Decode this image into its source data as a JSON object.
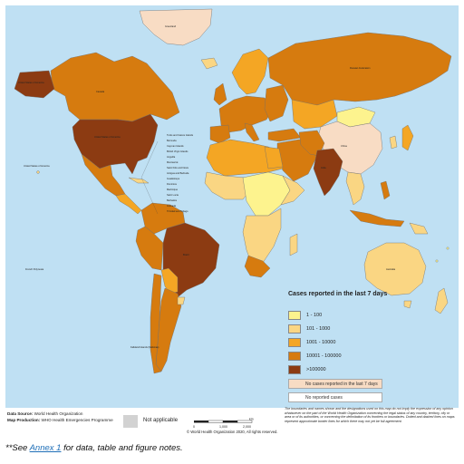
{
  "colors": {
    "ocean": "#bfe0f3",
    "border": "#6f6f6f",
    "na": "#d2d2d2",
    "link": "#1f6fb8"
  },
  "legend": {
    "title": "Cases reported in the last 7 days",
    "items": [
      {
        "label": "1 - 100",
        "color": "#fdf38e"
      },
      {
        "label": "101 - 1000",
        "color": "#fad683"
      },
      {
        "label": "1001 - 10000",
        "color": "#f4a624"
      },
      {
        "label": "10001 - 100000",
        "color": "#d67b0f"
      },
      {
        "label": ">100000",
        "color": "#8c3b12"
      }
    ],
    "no_cases_recent": {
      "label": "No cases reported in the last 7 days",
      "color": "#f8dcc4"
    },
    "no_cases": {
      "label": "No reported cases",
      "color": "#ffffff"
    }
  },
  "not_applicable": {
    "label": "Not applicable",
    "color": "#d2d2d2"
  },
  "source": {
    "data_source_label": "Data Source:",
    "data_source_value": "World Health Organization",
    "map_production_label": "Map Production:",
    "map_production_value": "WHO Health Emergencies Programme"
  },
  "scale": {
    "ticks": [
      "0",
      "1,000",
      "2,000"
    ],
    "unit": "km"
  },
  "copyright": "© World Health Organization 2020, All rights reserved.",
  "disclaimer": "The boundaries and names shown and the designations used on this map do not imply the expression of any opinion whatsoever on the part of the World Health Organization concerning the legal status of any country, territory, city or area or of its authorities, or concerning the delimitation of its frontiers or boundaries. Dotted and dashed lines on maps represent approximate border lines for which there may not yet be full agreement.",
  "footnote": {
    "prefix": "**See ",
    "link": "Annex 1",
    "suffix": " for data, table and figure notes."
  },
  "map_labels": {
    "usa": "United States of America",
    "canada": "Canada",
    "alaska": "United States of America",
    "greenland": "Greenland",
    "russia": "Russian Federation",
    "china": "China",
    "brazil": "Brazil",
    "australia": "Australia",
    "india": "India",
    "hawaii": "United States of America",
    "french_polynesia": "French Polynesia",
    "falkland": "Falkland Islands (Malvinas)",
    "caribbean": [
      "Turks and Caicos Islands",
      "Bermuda",
      "Cayman Islands",
      "British Virgin Islands",
      "Anguilla",
      "Montserrat",
      "Saint Kitts and Nevis",
      "Antigua and Barbuda",
      "Guadeloupe",
      "Dominica",
      "Martinique",
      "Saint Lucia",
      "Barbados",
      "Grenada",
      "Trinidad and Tobago"
    ]
  }
}
